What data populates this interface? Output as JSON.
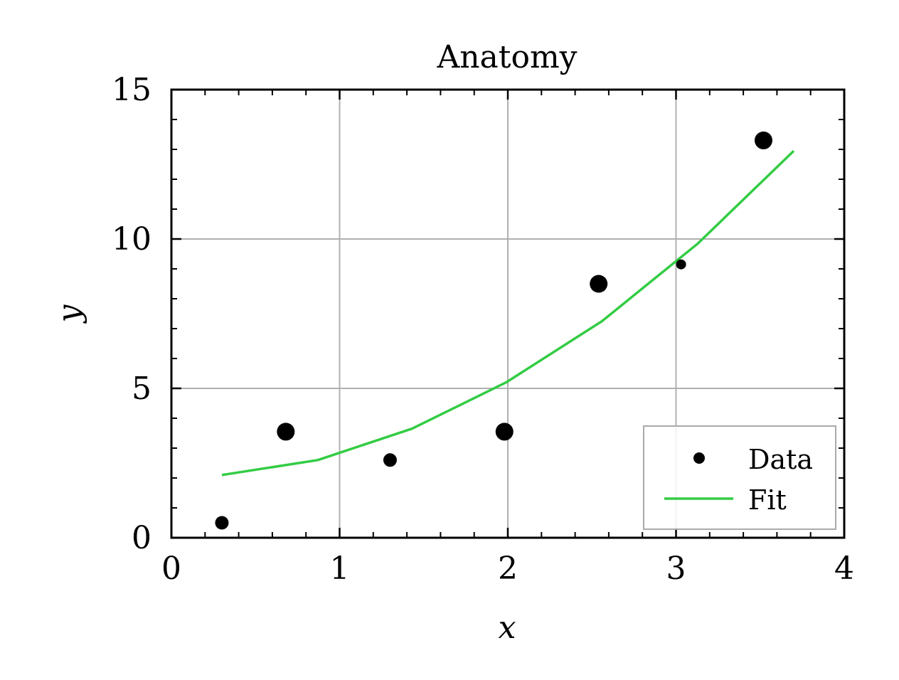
{
  "chart_data": {
    "type": "scatter",
    "title": "Anatomy",
    "xlabel": "x",
    "ylabel": "y",
    "xlim": [
      0,
      4
    ],
    "ylim": [
      0,
      15
    ],
    "xticks": [
      0,
      1,
      2,
      3,
      4
    ],
    "xtick_labels": [
      "0",
      "1",
      "2",
      "3",
      "4"
    ],
    "yticks": [
      0,
      5,
      10,
      15
    ],
    "ytick_labels": [
      "0",
      "5",
      "10",
      "15"
    ],
    "grid": true,
    "legend_position": "bottom-right",
    "series": [
      {
        "name": "Data",
        "kind": "scatter",
        "color": "#000000",
        "points": [
          {
            "x": 0.3,
            "y": 0.5,
            "size": "small"
          },
          {
            "x": 0.68,
            "y": 3.55,
            "size": "large"
          },
          {
            "x": 1.3,
            "y": 2.6,
            "size": "small"
          },
          {
            "x": 1.98,
            "y": 3.55,
            "size": "large"
          },
          {
            "x": 2.54,
            "y": 8.5,
            "size": "large"
          },
          {
            "x": 3.03,
            "y": 9.15,
            "size": "tiny"
          },
          {
            "x": 3.52,
            "y": 13.3,
            "size": "large"
          }
        ]
      },
      {
        "name": "Fit",
        "kind": "line",
        "color": "#33cc44",
        "x": [
          0.3,
          0.87,
          1.43,
          1.99,
          2.56,
          3.13,
          3.7
        ],
        "y": [
          2.1,
          2.6,
          3.65,
          5.2,
          7.25,
          9.85,
          12.95
        ]
      }
    ]
  }
}
